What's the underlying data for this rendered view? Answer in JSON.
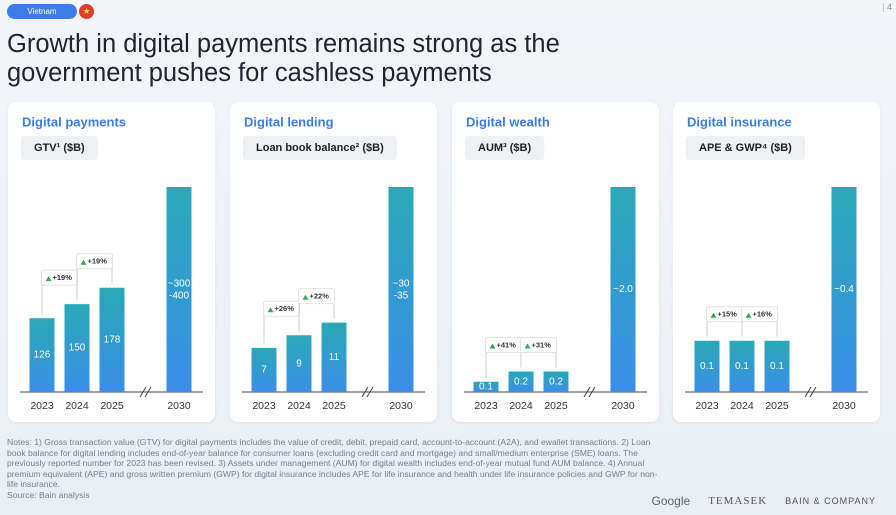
{
  "tag": "Vietnam",
  "page_number": "4",
  "title": "Growth in digital payments remains strong as the government pushes for cashless payments",
  "chart_data": [
    {
      "type": "bar",
      "title": "Digital payments",
      "subtitle": "GTV¹ ($B)",
      "categories": [
        "2023",
        "2024",
        "2025",
        "2030"
      ],
      "values": [
        126,
        150,
        178,
        350
      ],
      "value_labels": [
        "126",
        "150",
        "178",
        "~300-400"
      ],
      "growth_labels": [
        "+19%",
        "+19%"
      ],
      "color": "#3a8ee8"
    },
    {
      "type": "bar",
      "title": "Digital lending",
      "subtitle": "Loan book balance² ($B)",
      "categories": [
        "2023",
        "2024",
        "2025",
        "2030"
      ],
      "values": [
        7,
        9,
        11,
        32.5
      ],
      "value_labels": [
        "7",
        "9",
        "11",
        "~30-35"
      ],
      "growth_labels": [
        "+26%",
        "+22%"
      ],
      "color": "#3a8ee8"
    },
    {
      "type": "bar",
      "title": "Digital wealth",
      "subtitle": "AUM³ ($B)",
      "categories": [
        "2023",
        "2024",
        "2025",
        "2030"
      ],
      "values": [
        0.1,
        0.2,
        0.2,
        2.0
      ],
      "value_labels": [
        "0.1",
        "0.2",
        "0.2",
        "~2.0"
      ],
      "growth_labels": [
        "+41%",
        "+31%"
      ],
      "color": "#3a8ee8"
    },
    {
      "type": "bar",
      "title": "Digital insurance",
      "subtitle": "APE & GWP⁴ ($B)",
      "categories": [
        "2023",
        "2024",
        "2025",
        "2030"
      ],
      "values": [
        0.1,
        0.1,
        0.1,
        0.4
      ],
      "value_labels": [
        "0.1",
        "0.1",
        "0.1",
        "~0.4"
      ],
      "growth_labels": [
        "+15%",
        "+16%"
      ],
      "color": "#3a8ee8"
    }
  ],
  "notes": "Notes: 1) Gross transaction value (GTV) for digital payments includes the value of credit, debit, prepaid card, account-to-account (A2A), and ewallet transactions. 2) Loan book balance for digital lending includes end-of-year balance for consumer loans (excluding credit card and mortgage) and small/medium enterprise (SME) loans. The previously reported number for 2023 has been revised. 3) Assets under management (AUM) for digital wealth includes end-of-year mutual fund AUM balance. 4) Annual premium equivalent (APE) and gross written premium (GWP) for digital insurance includes APE for life insurance and health under life insurance policies and GWP for non-life insurance.",
  "source": "Source: Bain analysis",
  "logos": [
    "Google",
    "TEMASEK",
    "BAIN & COMPANY"
  ]
}
